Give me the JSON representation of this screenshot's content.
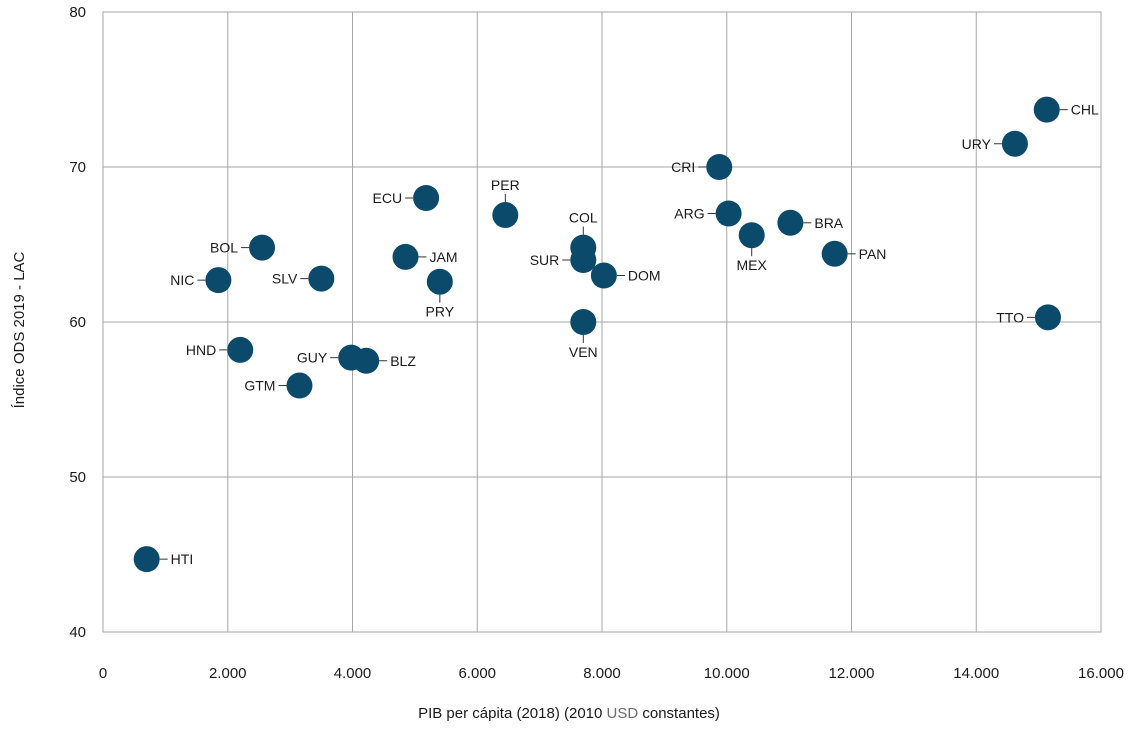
{
  "chart_data": {
    "type": "scatter",
    "title": "",
    "xlabel_parts": [
      "PIB per cápita (2018) (2010 ",
      "USD",
      " constantes)"
    ],
    "ylabel": "Índice ODS 2019 - LAC",
    "xlim": [
      0,
      16000
    ],
    "ylim": [
      40,
      80
    ],
    "x_ticks": [
      0,
      2000,
      4000,
      6000,
      8000,
      10000,
      12000,
      14000,
      16000
    ],
    "x_tick_labels": [
      "0",
      "2.000",
      "4.000",
      "6.000",
      "8.000",
      "10.000",
      "12.000",
      "14.000",
      "16.000"
    ],
    "y_ticks": [
      40,
      50,
      60,
      70,
      80
    ],
    "y_tick_labels": [
      "40",
      "50",
      "60",
      "70",
      "80"
    ],
    "grid": true,
    "colors": {
      "marker": "#0b4a6b",
      "usd_highlight": "#6b6b6b"
    },
    "points": [
      {
        "label": "HTI",
        "x": 700,
        "y": 44.7,
        "pos": "right"
      },
      {
        "label": "NIC",
        "x": 1850,
        "y": 62.7,
        "pos": "left"
      },
      {
        "label": "HND",
        "x": 2200,
        "y": 58.2,
        "pos": "left"
      },
      {
        "label": "BOL",
        "x": 2550,
        "y": 64.8,
        "pos": "left"
      },
      {
        "label": "GTM",
        "x": 3150,
        "y": 55.9,
        "pos": "left"
      },
      {
        "label": "SLV",
        "x": 3500,
        "y": 62.8,
        "pos": "left"
      },
      {
        "label": "GUY",
        "x": 3980,
        "y": 57.7,
        "pos": "left"
      },
      {
        "label": "BLZ",
        "x": 4220,
        "y": 57.5,
        "pos": "right"
      },
      {
        "label": "JAM",
        "x": 4850,
        "y": 64.2,
        "pos": "right"
      },
      {
        "label": "ECU",
        "x": 5180,
        "y": 68.0,
        "pos": "left"
      },
      {
        "label": "PRY",
        "x": 5400,
        "y": 62.6,
        "pos": "below"
      },
      {
        "label": "PER",
        "x": 6450,
        "y": 66.9,
        "pos": "above"
      },
      {
        "label": "COL",
        "x": 7700,
        "y": 64.8,
        "pos": "above"
      },
      {
        "label": "SUR",
        "x": 7700,
        "y": 64.0,
        "pos": "left"
      },
      {
        "label": "VEN",
        "x": 7700,
        "y": 60.0,
        "pos": "below"
      },
      {
        "label": "DOM",
        "x": 8030,
        "y": 63.0,
        "pos": "right"
      },
      {
        "label": "CRI",
        "x": 9880,
        "y": 70.0,
        "pos": "left"
      },
      {
        "label": "ARG",
        "x": 10030,
        "y": 67.0,
        "pos": "left"
      },
      {
        "label": "MEX",
        "x": 10400,
        "y": 65.6,
        "pos": "below"
      },
      {
        "label": "BRA",
        "x": 11020,
        "y": 66.4,
        "pos": "right"
      },
      {
        "label": "PAN",
        "x": 11730,
        "y": 64.4,
        "pos": "right"
      },
      {
        "label": "URY",
        "x": 14620,
        "y": 71.5,
        "pos": "left"
      },
      {
        "label": "CHL",
        "x": 15130,
        "y": 73.7,
        "pos": "right"
      },
      {
        "label": "TTO",
        "x": 15150,
        "y": 60.3,
        "pos": "left"
      }
    ]
  }
}
